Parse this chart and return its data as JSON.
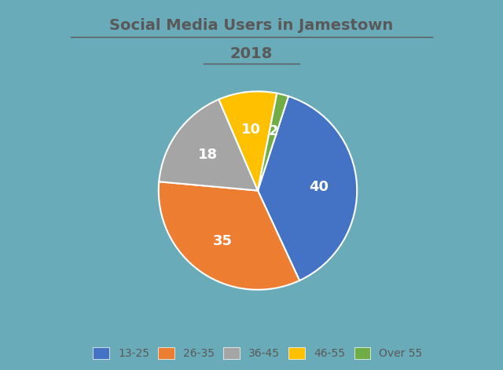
{
  "title_line1": "Social Media Users in Jamestown",
  "title_line2": "2018",
  "slices": [
    40,
    35,
    18,
    10,
    2
  ],
  "labels": [
    "13-25",
    "26-35",
    "36-45",
    "46-55",
    "Over 55"
  ],
  "colors": [
    "#4472C4",
    "#ED7D31",
    "#A5A5A5",
    "#FFC000",
    "#70AD47"
  ],
  "autopct_labels": [
    "40",
    "35",
    "18",
    "10",
    "2"
  ],
  "background_color": "#6AABBA",
  "text_color": "#595959",
  "startangle": 72
}
